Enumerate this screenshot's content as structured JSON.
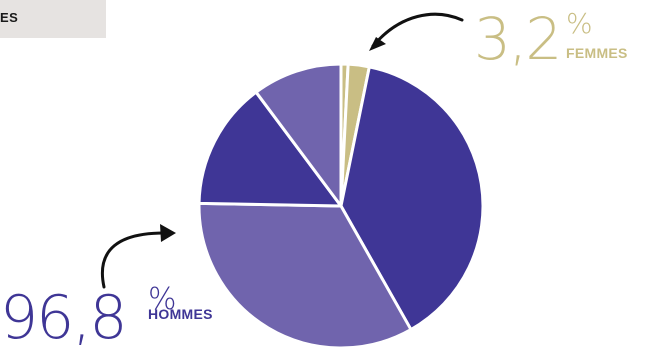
{
  "header": {
    "label": "ES"
  },
  "colors": {
    "women": "#c9be84",
    "men_dark": "#3f3696",
    "men_light": "#7064ad",
    "header_bg": "#e6e3e1"
  },
  "chart_data": {
    "type": "pie",
    "title": "",
    "series": [
      {
        "name": "",
        "value": 0.8,
        "color": "#c9be84"
      },
      {
        "name": "",
        "value": 2.4,
        "color": "#c9be84"
      },
      {
        "name": "",
        "value": 38.6,
        "color": "#3f3696"
      },
      {
        "name": "",
        "value": 33.5,
        "color": "#7064ad"
      },
      {
        "name": "",
        "value": 14.5,
        "color": "#3f3696"
      },
      {
        "name": "",
        "value": 10.2,
        "color": "#7064ad"
      }
    ],
    "annotations": {
      "women": {
        "value": "3,2",
        "unit": "%",
        "label": "FEMMES"
      },
      "men": {
        "value": "96,8",
        "unit": "%",
        "label": "HOMMES"
      }
    }
  }
}
